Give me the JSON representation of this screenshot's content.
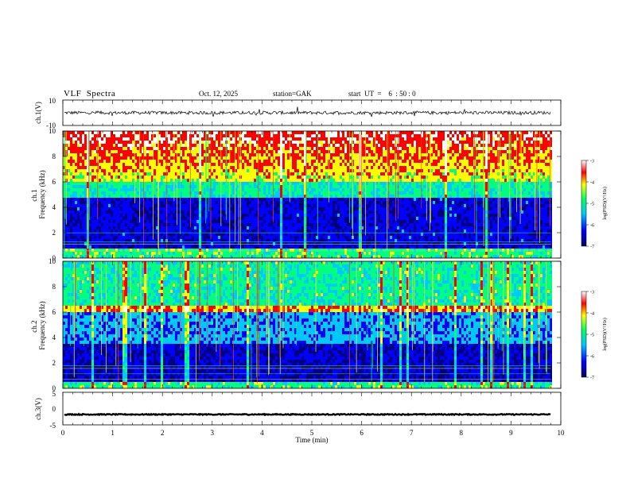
{
  "header": {
    "title": "VLF  Spectra",
    "date": "Oct. 12, 2025",
    "station": "station=GAK",
    "start": "start  UT  =    6  : 50 : 0"
  },
  "chart_data": [
    {
      "type": "line",
      "name": "ch1-waveform",
      "ylabel": "ch.1(V)",
      "ylim": [
        -10,
        10
      ],
      "yticks": [
        "10",
        "-10"
      ],
      "baseline": 0
    },
    {
      "type": "heatmap",
      "name": "ch1-spectrogram",
      "ylabel": "ch.1\nFrequency  (kHz)",
      "ylabel_lines": [
        "ch.1",
        "Frequency  (kHz)"
      ],
      "ylim": [
        0,
        10
      ],
      "yticks": [
        "0",
        "2",
        "4",
        "6",
        "8",
        "10"
      ],
      "colorbar": {
        "label": "log(PSD)(V²/Hz)",
        "range": [
          -7,
          -3
        ],
        "ticks": [
          "-3",
          "-4",
          "-5",
          "-6",
          "-7"
        ]
      }
    },
    {
      "type": "heatmap",
      "name": "ch2-spectrogram",
      "ylabel": "ch.2\nFrequency  (kHz)",
      "ylabel_lines": [
        "ch.2",
        "Frequency  (kHz)"
      ],
      "ylim": [
        0,
        10
      ],
      "yticks": [
        "0",
        "2",
        "4",
        "6",
        "8",
        "10"
      ],
      "colorbar": {
        "label": "log(PSD)(V²/Hz)",
        "range": [
          -7,
          -3
        ],
        "ticks": [
          "-3",
          "-4",
          "-5",
          "-6",
          "-7"
        ]
      }
    },
    {
      "type": "line",
      "name": "ch3-waveform",
      "ylabel": "ch.3(V)",
      "ylim": [
        -5,
        5
      ],
      "yticks": [
        "5",
        "0",
        "-5"
      ],
      "baseline": -1.8
    }
  ],
  "xaxis": {
    "label": "Time  (min)",
    "range": [
      0,
      10
    ],
    "ticks": [
      "0",
      "1",
      "2",
      "3",
      "4",
      "5",
      "6",
      "7",
      "8",
      "9",
      "10"
    ],
    "data_end": 9.8
  },
  "colormap": [
    "#000080",
    "#0000ff",
    "#00c8ff",
    "#00ff80",
    "#ffff00",
    "#ff0000",
    "#ffffff"
  ]
}
